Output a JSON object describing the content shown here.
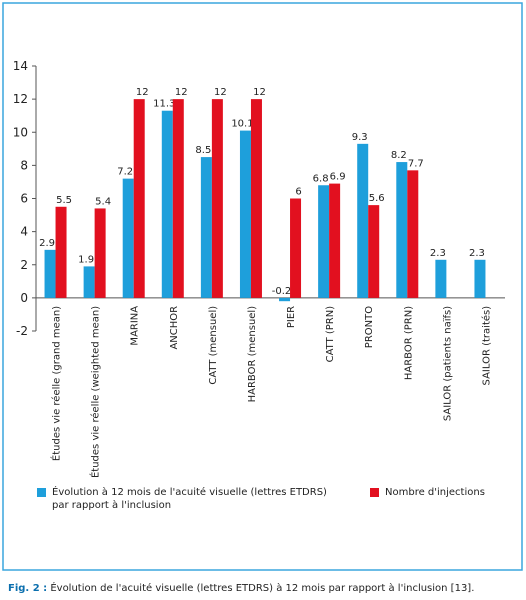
{
  "chart_data": {
    "type": "bar",
    "categories": [
      "Études vie réelle (grand mean)",
      "Études vie réelle (weighted mean)",
      "MARINA",
      "ANCHOR",
      "CATT (mensuel)",
      "HARBOR (mensuel)",
      "PIER",
      "CATT (PRN)",
      "PRONTO",
      "HARBOR (PRN)",
      "SAILOR (patients naïfs)",
      "SAILOR (traités)"
    ],
    "series": [
      {
        "name": "Évolution à 12 mois de l'acuité visuelle (lettres ETDRS) par rapport à l'inclusion",
        "color": "#1e9fdb",
        "values": [
          2.9,
          1.9,
          7.2,
          11.3,
          8.5,
          10.1,
          -0.2,
          6.8,
          9.3,
          8.2,
          2.3,
          2.3
        ]
      },
      {
        "name": "Nombre d'injections",
        "color": "#e2101f",
        "values": [
          5.5,
          5.4,
          12,
          12,
          12,
          12,
          6,
          6.9,
          5.6,
          7.7,
          null,
          null
        ]
      }
    ],
    "ylim": [
      -2,
      14
    ],
    "yticks": [
      -2,
      0,
      2,
      4,
      6,
      8,
      10,
      12,
      14
    ],
    "legend": "bottom",
    "grid": false
  },
  "caption": {
    "label": "Fig. 2 :",
    "text": "Évolution de l'acuité visuelle (lettres ETDRS) à 12 mois par rapport à l'inclusion [13]."
  }
}
